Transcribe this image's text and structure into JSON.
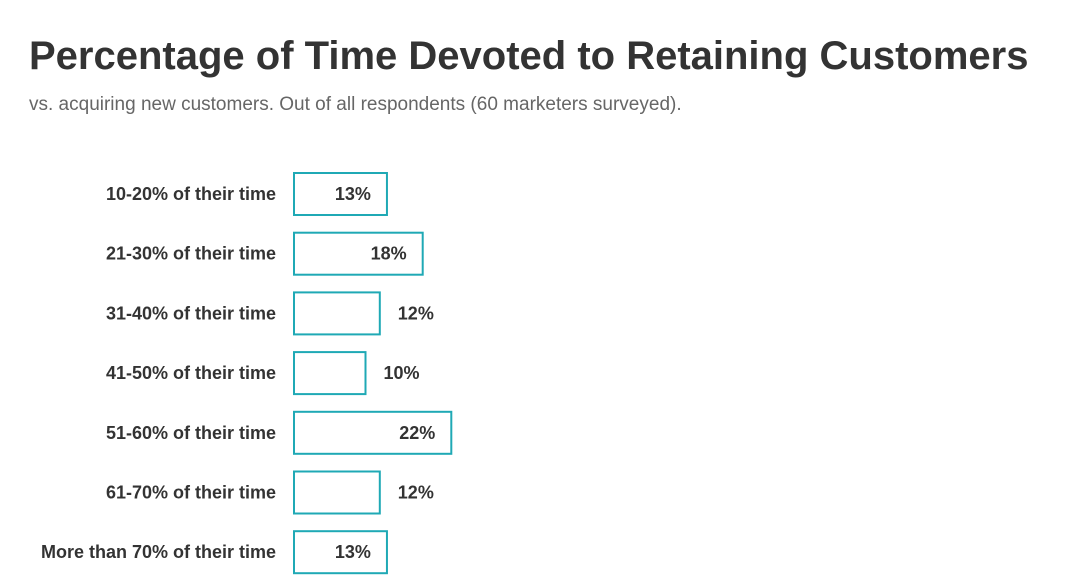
{
  "title": "Percentage of Time Devoted to Retaining Customers",
  "subtitle": "vs. acquiring new customers. Out of all respondents (60 marketers surveyed).",
  "colors": {
    "bar_stroke": "#1fa9b5",
    "bar_fill": "#ffffff",
    "label_text": "#333333"
  },
  "chart_data": {
    "type": "bar",
    "orientation": "horizontal",
    "categories": [
      "10-20% of their time",
      "21-30% of their time",
      "31-40% of their time",
      "41-50% of their time",
      "51-60% of their time",
      "61-70% of their time",
      "More than 70% of their time"
    ],
    "values": [
      13,
      18,
      12,
      10,
      22,
      12,
      13
    ],
    "value_labels": [
      "13%",
      "18%",
      "12%",
      "10%",
      "22%",
      "12%",
      "13%"
    ],
    "unit": "%",
    "xlim": [
      0,
      100
    ],
    "grid": false,
    "legend": "none"
  }
}
